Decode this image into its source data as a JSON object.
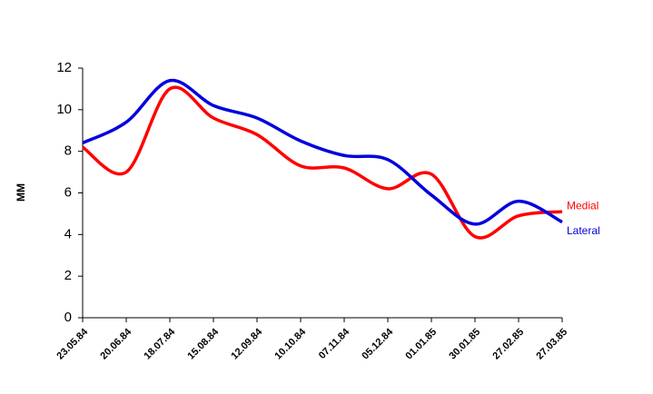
{
  "chart_data": {
    "type": "line",
    "y_label": "MM",
    "categories": [
      "23.05.84",
      "20.06.84",
      "18.07.84",
      "15.08.84",
      "12.09.84",
      "10.10.84",
      "07.11.84",
      "05.12.84",
      "01.01.85",
      "30.01.85",
      "27.02.85",
      "27.03.85"
    ],
    "series": [
      {
        "name": "Medial",
        "color": "#ff0000",
        "values": [
          8.2,
          7.0,
          11.0,
          9.6,
          8.8,
          7.3,
          7.2,
          6.2,
          6.9,
          3.9,
          4.9,
          5.1
        ]
      },
      {
        "name": "Lateral",
        "color": "#0000dd",
        "values": [
          8.4,
          9.4,
          11.4,
          10.2,
          9.6,
          8.5,
          7.8,
          7.6,
          5.9,
          4.5,
          5.6,
          4.6
        ]
      }
    ],
    "ylim": [
      0,
      12
    ],
    "yticks": [
      0,
      2,
      4,
      6,
      8,
      10,
      12
    ],
    "grid": false
  }
}
